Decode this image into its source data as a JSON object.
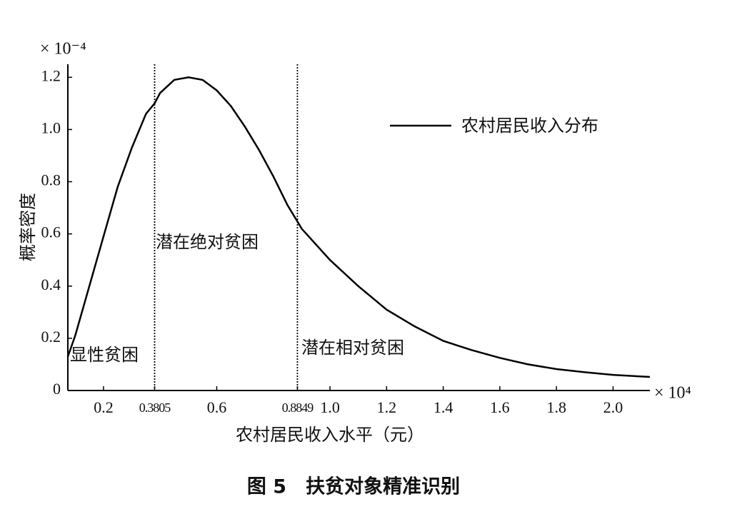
{
  "chart_data": {
    "type": "line",
    "xlabel": "农村居民收入水平（元）",
    "ylabel": "概率密度",
    "caption": "图 5　扶贫对象精准识别",
    "x_multiplier": "× 10⁴",
    "y_multiplier": "× 10⁻⁴",
    "x": [
      0.074,
      0.1,
      0.15,
      0.2,
      0.25,
      0.3,
      0.35,
      0.3805,
      0.4,
      0.45,
      0.5,
      0.55,
      0.6,
      0.65,
      0.7,
      0.75,
      0.8,
      0.85,
      0.8849,
      0.9,
      1.0,
      1.1,
      1.2,
      1.3,
      1.4,
      1.5,
      1.6,
      1.7,
      1.8,
      1.9,
      2.0,
      2.13
    ],
    "series": [
      {
        "name": "农村居民收入分布",
        "color": "#000000",
        "values": [
          0.13,
          0.21,
          0.4,
          0.59,
          0.78,
          0.93,
          1.06,
          1.1,
          1.14,
          1.19,
          1.2,
          1.19,
          1.15,
          1.09,
          1.01,
          0.92,
          0.82,
          0.71,
          0.648,
          0.62,
          0.5,
          0.4,
          0.31,
          0.245,
          0.19,
          0.155,
          0.125,
          0.1,
          0.082,
          0.07,
          0.06,
          0.052
        ]
      }
    ],
    "xlim": [
      0.074,
      2.13
    ],
    "ylim": [
      0,
      1.25
    ],
    "xticks": [
      0.2,
      0.3805,
      0.6,
      0.8849,
      {
        "value": 1,
        "label": "1.0"
      },
      1.2,
      1.4,
      1.6,
      1.8,
      {
        "value": 2,
        "label": "2.0"
      }
    ],
    "yticks": [
      0,
      0.2,
      0.4,
      0.6,
      0.8,
      {
        "value": 1,
        "label": "1.0"
      },
      1.2
    ],
    "thresholds": [
      0.3805,
      0.8849
    ],
    "annotations": [
      "显性贫困",
      "潜在绝对贫困",
      "潜在相对贫困"
    ],
    "legend": "upper right"
  }
}
